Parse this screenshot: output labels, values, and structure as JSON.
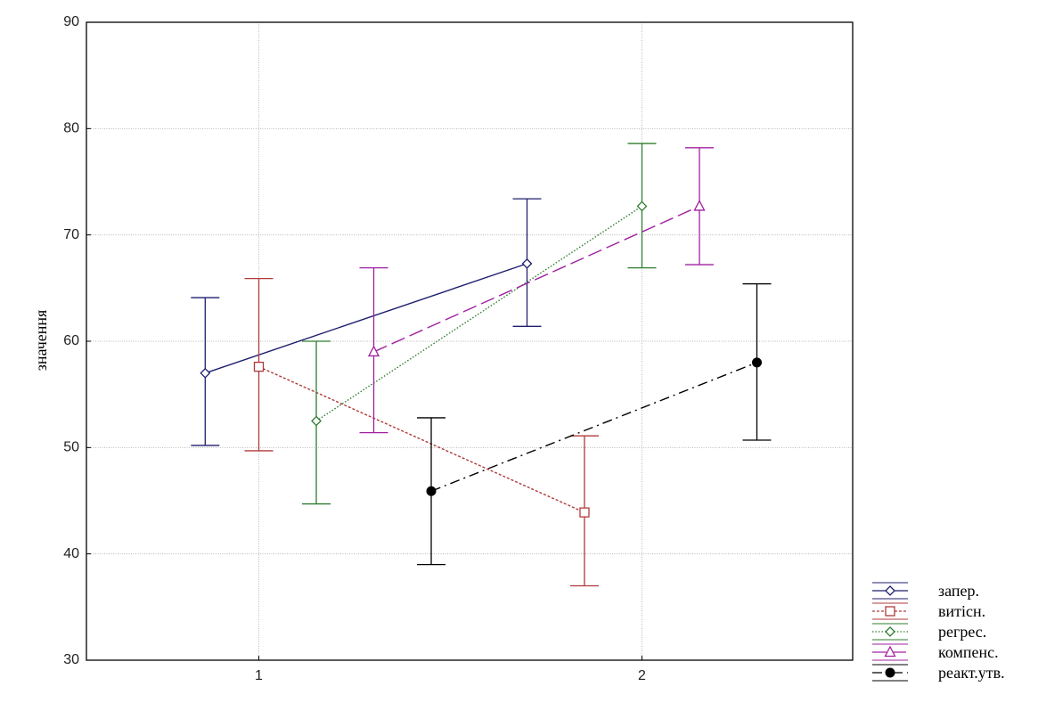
{
  "chart_data": {
    "type": "line",
    "ylabel": "значення",
    "xlabel": "",
    "ylim": [
      30,
      90
    ],
    "yticks": [
      30,
      40,
      50,
      60,
      70,
      80,
      90
    ],
    "ytick_labels": [
      "30",
      "40",
      "50",
      "60",
      "70",
      "80",
      "90"
    ],
    "xlim": [
      0.55,
      2.55
    ],
    "xticks": [
      1,
      2
    ],
    "xtick_labels": [
      "1",
      "2"
    ],
    "grid": true,
    "legend_position": "bottom-right, outside plot",
    "series": [
      {
        "name": "запер.",
        "color": "#1f1f6e",
        "marker": "diamond",
        "line_style": "solid",
        "points": [
          {
            "x": 0.86,
            "y": 57.0,
            "low": 50.2,
            "high": 64.1
          },
          {
            "x": 1.7,
            "y": 67.3,
            "low": 61.4,
            "high": 73.4
          }
        ]
      },
      {
        "name": "витісн.",
        "color": "#b03a3a",
        "marker": "square",
        "line_style": "dashed",
        "points": [
          {
            "x": 1.0,
            "y": 57.6,
            "low": 49.7,
            "high": 65.9
          },
          {
            "x": 1.85,
            "y": 43.9,
            "low": 37.0,
            "high": 51.1
          }
        ]
      },
      {
        "name": "регрес.",
        "color": "#2e7d2e",
        "marker": "diamond",
        "line_style": "dotted",
        "points": [
          {
            "x": 1.15,
            "y": 52.5,
            "low": 44.7,
            "high": 60.0
          },
          {
            "x": 2.0,
            "y": 72.7,
            "low": 66.9,
            "high": 78.6
          }
        ]
      },
      {
        "name": "компенс.",
        "color": "#a020a0",
        "marker": "triangle",
        "line_style": "long-dash",
        "points": [
          {
            "x": 1.3,
            "y": 59.0,
            "low": 51.4,
            "high": 66.9
          },
          {
            "x": 2.15,
            "y": 72.7,
            "low": 67.2,
            "high": 78.2
          }
        ]
      },
      {
        "name": "реакт.утв.",
        "color": "#000000",
        "marker": "filled-circle",
        "line_style": "dash-dot",
        "points": [
          {
            "x": 1.45,
            "y": 45.9,
            "low": 39.0,
            "high": 52.8
          },
          {
            "x": 2.3,
            "y": 58.0,
            "low": 50.7,
            "high": 65.4
          }
        ]
      }
    ]
  }
}
